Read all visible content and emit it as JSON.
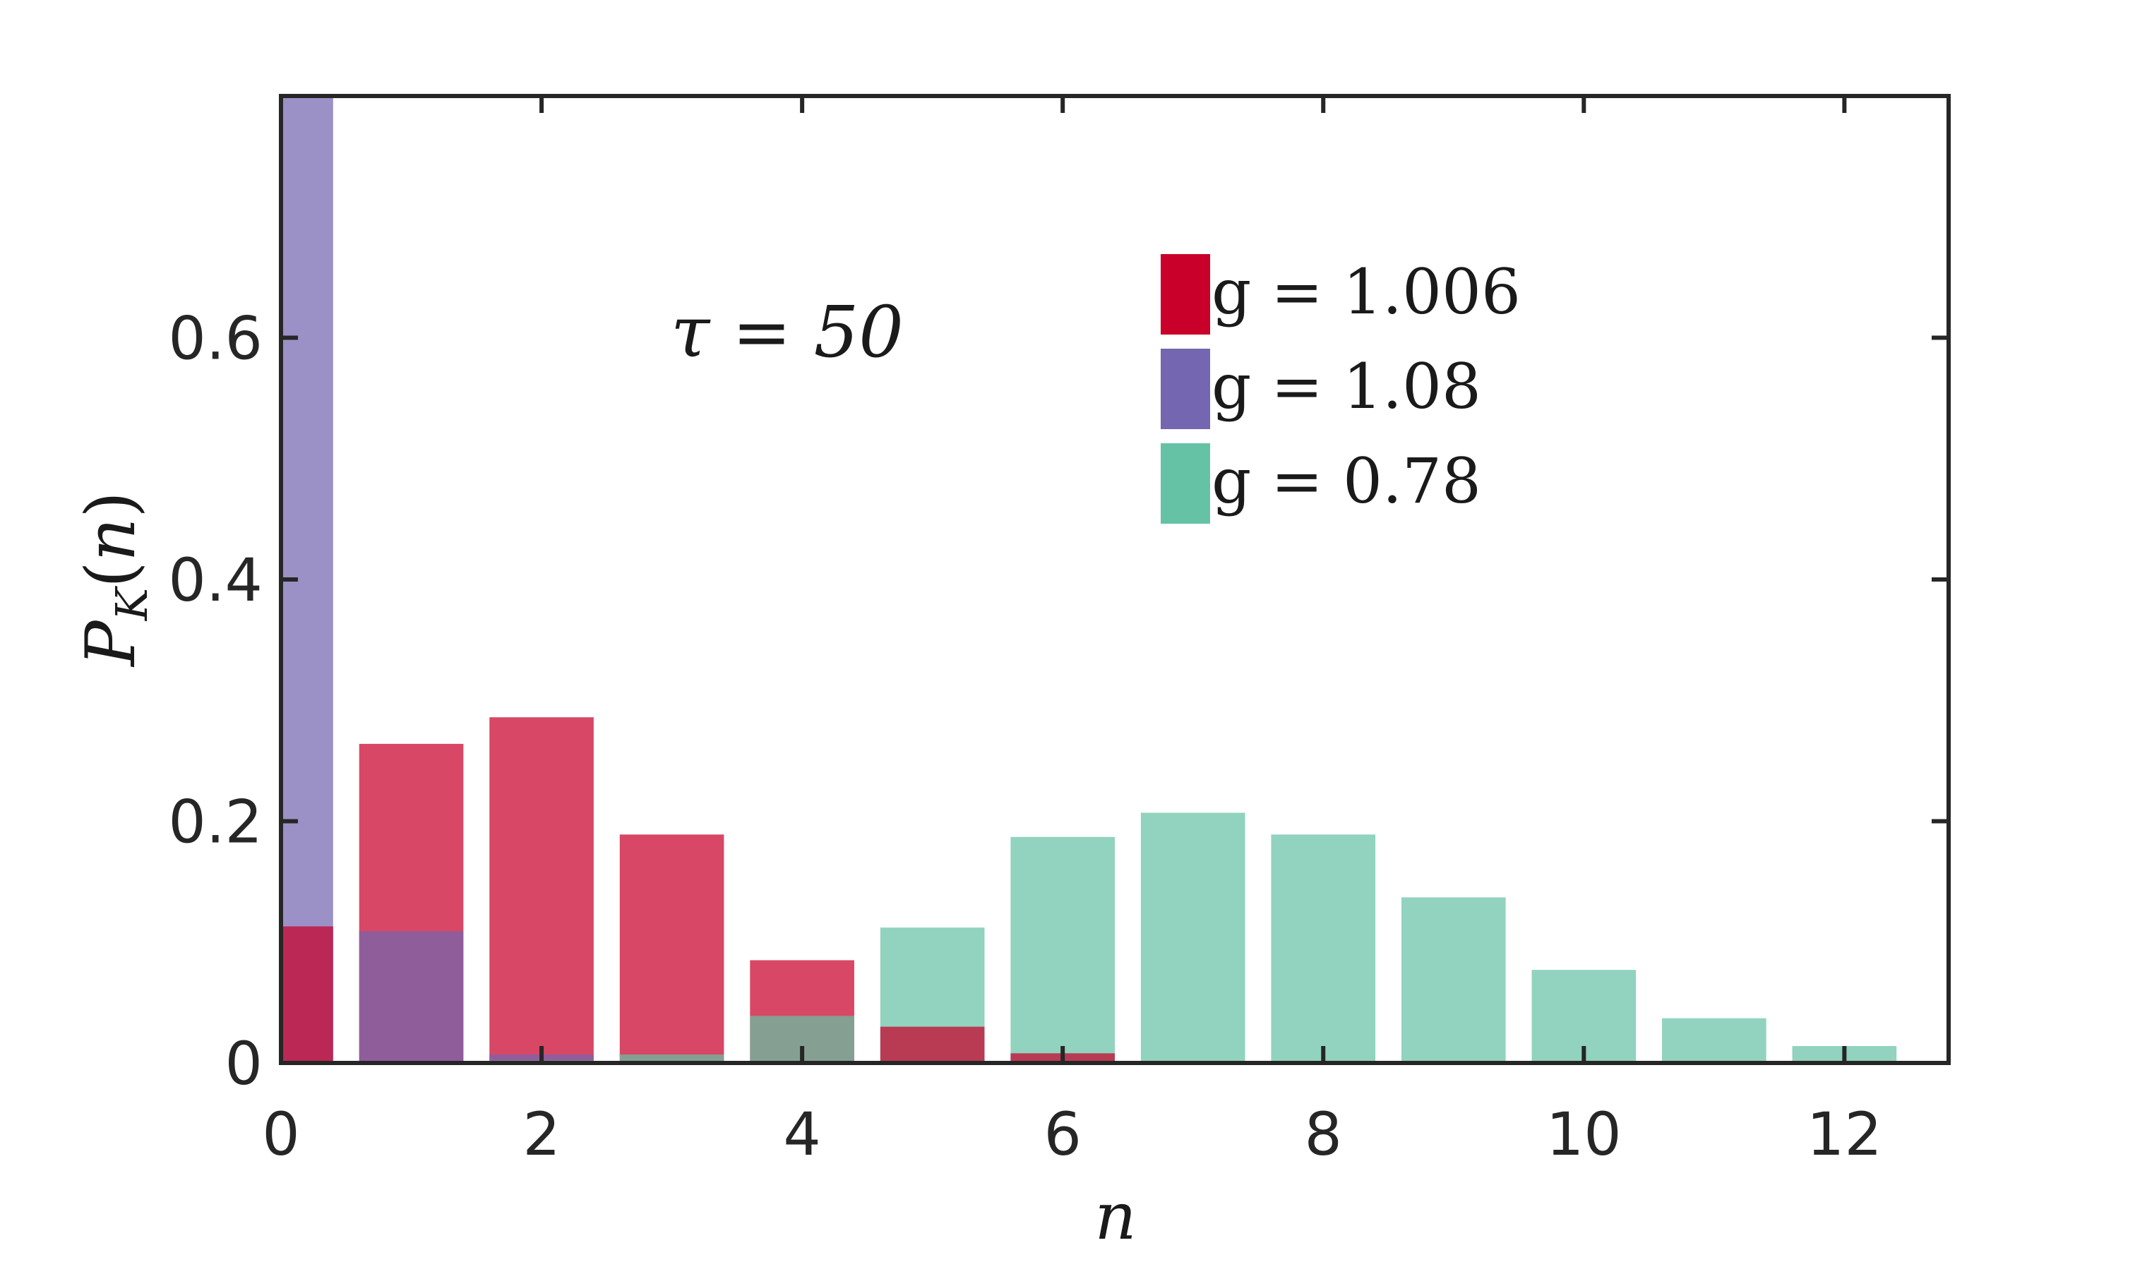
{
  "chart_data": {
    "type": "bar",
    "xlabel": "n",
    "ylabel": "P_K(n)",
    "xlim": [
      0,
      12.8
    ],
    "ylim": [
      0,
      0.8
    ],
    "x_ticks": [
      0,
      2,
      4,
      6,
      8,
      10,
      12
    ],
    "y_ticks": [
      0,
      0.2,
      0.4,
      0.6
    ],
    "x_tick_labels": [
      "0",
      "2",
      "4",
      "6",
      "8",
      "10",
      "12"
    ],
    "y_tick_labels": [
      "0",
      "0.2",
      "0.4",
      "0.6"
    ],
    "annotation": "τ = 50",
    "legend_position": "top-right",
    "bar_width": 0.8,
    "series": [
      {
        "name": "g = 1.006",
        "color": "#c9002a",
        "x": [
          0,
          1,
          2,
          3,
          4,
          5,
          6
        ],
        "values": [
          0.113,
          0.264,
          0.286,
          0.189,
          0.085,
          0.03,
          0.008
        ]
      },
      {
        "name": "g = 1.08",
        "color": "#7466b0",
        "x": [
          0,
          1,
          2,
          3
        ],
        "values": [
          0.8,
          0.109,
          0.007,
          0.001
        ]
      },
      {
        "name": "g = 0.78",
        "color": "#66c2a5",
        "x": [
          0,
          1,
          2,
          3,
          4,
          5,
          6,
          7,
          8,
          9,
          10,
          11,
          12
        ],
        "values": [
          0.0,
          0.0,
          0.002,
          0.007,
          0.039,
          0.112,
          0.187,
          0.207,
          0.189,
          0.137,
          0.077,
          0.037,
          0.014
        ]
      }
    ]
  }
}
